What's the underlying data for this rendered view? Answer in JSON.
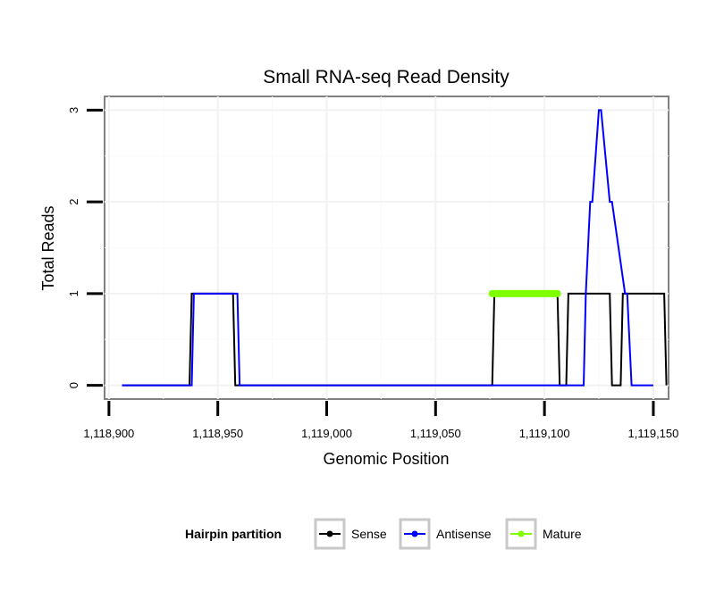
{
  "chart_data": {
    "type": "line",
    "title": "Small RNA-seq Read Density",
    "xlabel": "Genomic Position",
    "ylabel": "Total Reads",
    "xlim": [
      1118898,
      1119157
    ],
    "ylim": [
      -0.15,
      3.15
    ],
    "x_ticks": [
      1118900,
      1118950,
      1119000,
      1119050,
      1119100,
      1119150
    ],
    "x_tick_labels": [
      "1,118,900",
      "1,118,950",
      "1,119,000",
      "1,119,050",
      "1,119,100",
      "1,119,150"
    ],
    "y_ticks": [
      0,
      1,
      2,
      3
    ],
    "y_tick_labels": [
      "0",
      "1",
      "2",
      "3"
    ],
    "grid": true,
    "legend": {
      "title": "Hairpin partition",
      "position": "bottom",
      "entries": [
        "Sense",
        "Antisense",
        "Mature"
      ]
    },
    "series": [
      {
        "name": "Sense",
        "color": "#000000",
        "x": [
          1118906,
          1118937,
          1118938,
          1118957,
          1118958,
          1119076,
          1119077,
          1119106,
          1119107,
          1119110,
          1119111,
          1119130,
          1119131,
          1119135,
          1119136,
          1119155,
          1119156
        ],
        "y": [
          0,
          0,
          1,
          1,
          0,
          0,
          1,
          1,
          0,
          0,
          1,
          1,
          0,
          0,
          1,
          1,
          0
        ]
      },
      {
        "name": "Antisense",
        "color": "#0000ff",
        "x": [
          1118906,
          1118938,
          1118939,
          1118959,
          1118960,
          1119118,
          1119119,
          1119121,
          1119122,
          1119125,
          1119126,
          1119130,
          1119131,
          1119137,
          1119138,
          1119140,
          1119141,
          1119150
        ],
        "y": [
          0,
          0,
          1,
          1,
          0,
          0,
          1,
          2,
          2,
          3,
          3,
          2,
          2,
          1,
          1,
          0,
          0,
          0
        ]
      },
      {
        "name": "Mature",
        "color": "#7fff00",
        "x": [
          1119076,
          1119106
        ],
        "y": [
          1,
          1
        ]
      }
    ]
  }
}
